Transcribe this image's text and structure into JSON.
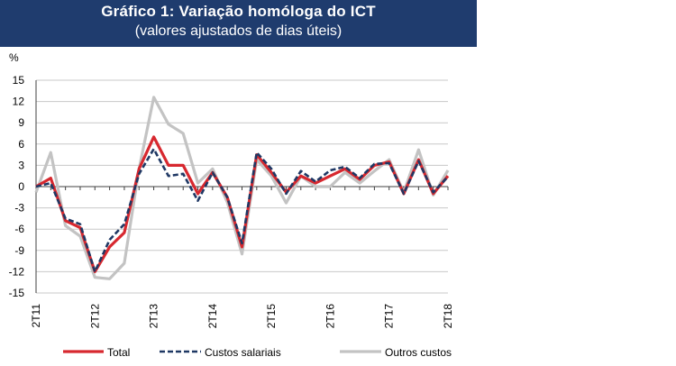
{
  "chart_data": {
    "type": "line",
    "title": "Gráfico 1: Variação homóloga do ICT",
    "subtitle": "(valores ajustados de dias úteis)",
    "ylabel": "%",
    "xlabel": "",
    "ylim": [
      -15,
      15
    ],
    "yticks": [
      15,
      12,
      9,
      6,
      3,
      0,
      -3,
      -6,
      -9,
      -12,
      -15
    ],
    "x_tick_labels": [
      "2T11",
      "2T12",
      "2T13",
      "2T14",
      "2T15",
      "2T16",
      "2T17",
      "2T18"
    ],
    "n_points": 29,
    "grid": true,
    "legend_position": "bottom",
    "series": [
      {
        "name": "Total",
        "color": "#d7282f",
        "style": "solid",
        "values": [
          0,
          1.2,
          -4.8,
          -5.8,
          -12,
          -8.5,
          -6.5,
          2.5,
          7,
          3,
          3,
          -1,
          2,
          -1.5,
          -8.5,
          4.5,
          2,
          -0.8,
          1.5,
          0.5,
          1.5,
          2.5,
          1,
          3,
          3.5,
          -1,
          3.8,
          -1,
          1.5
        ]
      },
      {
        "name": "Custos salariais",
        "color": "#1f3864",
        "style": "dashed",
        "values": [
          0,
          0.5,
          -4.5,
          -5.3,
          -12,
          -7.5,
          -5.3,
          1.8,
          5.3,
          1.5,
          1.8,
          -2,
          2,
          -1.5,
          -8,
          4.8,
          2.5,
          -1,
          2.2,
          0.7,
          2.3,
          2.8,
          1.2,
          3.2,
          3.3,
          -1,
          3.6,
          -0.8,
          1.4
        ]
      },
      {
        "name": "Outros custos",
        "color": "#c3c3c3",
        "style": "solid",
        "values": [
          -0.8,
          4.8,
          -5.5,
          -7,
          -12.8,
          -13,
          -10.8,
          2.5,
          12.6,
          8.8,
          7.5,
          0.5,
          2.5,
          -2.2,
          -9.5,
          3.8,
          1.5,
          -2.3,
          1.5,
          0,
          0,
          2,
          0.5,
          2.2,
          3.8,
          -0.8,
          5.2,
          -1.2,
          2.3
        ]
      }
    ]
  }
}
